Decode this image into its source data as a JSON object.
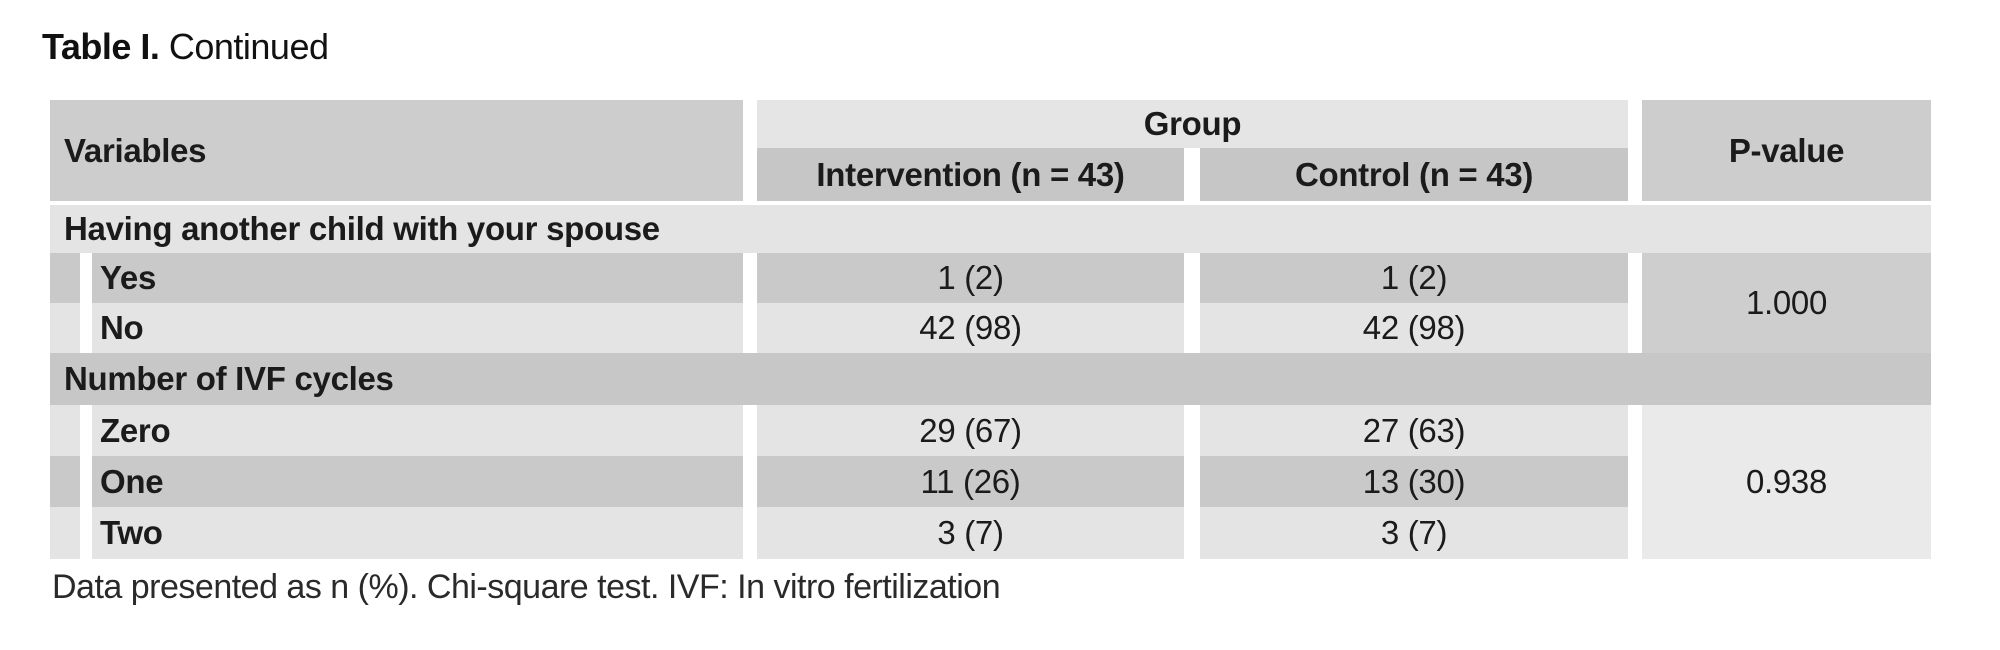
{
  "title": {
    "label_bold": "Table I.",
    "label_rest": " Continued"
  },
  "table": {
    "columns": {
      "variables": "Variables",
      "group": "Group",
      "intervention": "Intervention (n = 43)",
      "control": "Control (n = 43)",
      "pvalue": "P-value"
    },
    "sections": [
      {
        "header": "Having another child with your spouse",
        "pvalue": "1.000",
        "rows": [
          {
            "label": "Yes",
            "intervention": "1 (2)",
            "control": "1 (2)"
          },
          {
            "label": "No",
            "intervention": "42 (98)",
            "control": "42 (98)"
          }
        ]
      },
      {
        "header": "Number of IVF cycles",
        "pvalue": "0.938",
        "rows": [
          {
            "label": "Zero",
            "intervention": "29 (67)",
            "control": "27 (63)"
          },
          {
            "label": "One",
            "intervention": "11 (26)",
            "control": "13 (30)"
          },
          {
            "label": "Two",
            "intervention": "3 (7)",
            "control": "3 (7)"
          }
        ]
      }
    ]
  },
  "footnote": "Data presented as n (%). Chi-square test. IVF: In vitro fertilization",
  "colors": {
    "header_medium_gray": "#cdcdcd",
    "header_light_gray": "#e5e5e5",
    "subheader_gray": "#c6c6c6",
    "row_light_gray": "#e4e4e4",
    "row_medium_gray": "#c9c9c9",
    "section_band_dark": "#c7c7c7",
    "pvalue_cell_1": "#cecece",
    "pvalue_cell_2": "#eaeaea",
    "text": "#1b1b1b",
    "background": "#ffffff"
  }
}
